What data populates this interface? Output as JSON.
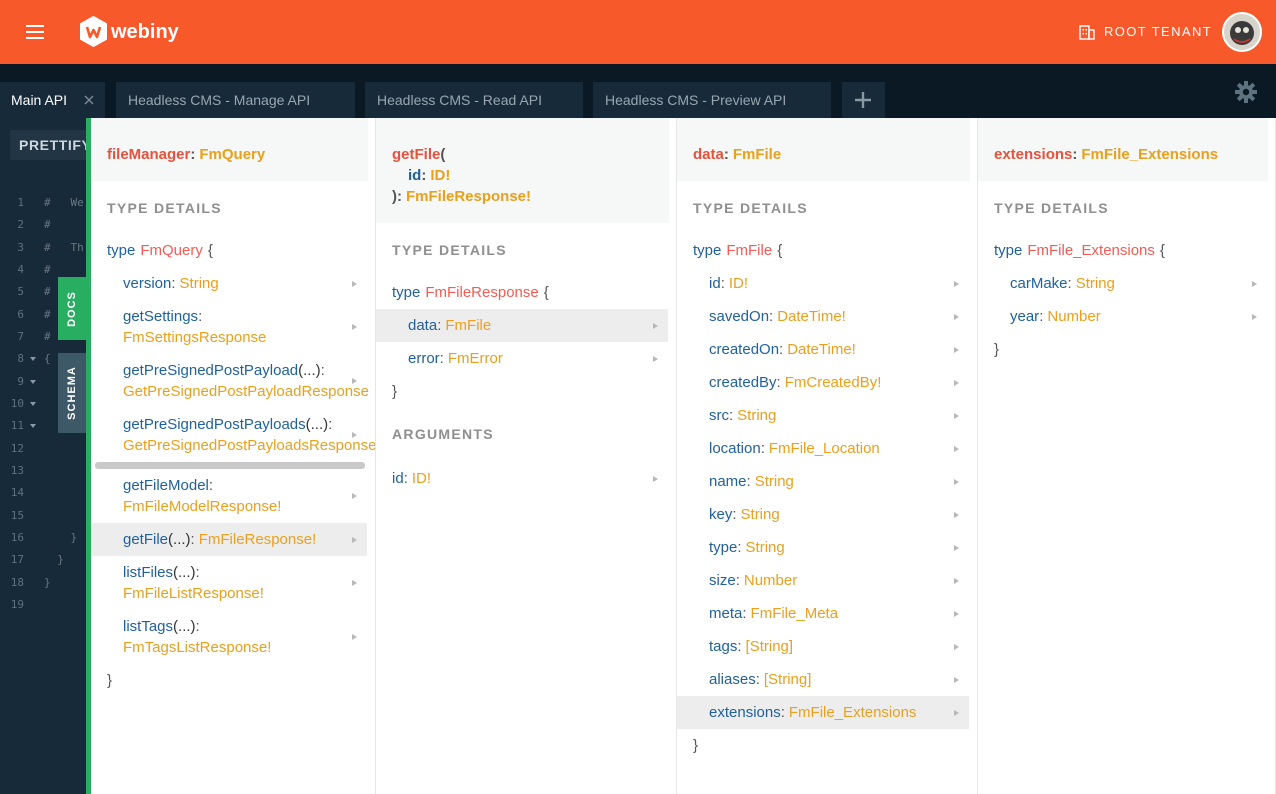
{
  "header": {
    "brand": "webiny",
    "tenant": "ROOT TENANT"
  },
  "tabs": [
    {
      "label": "Main API",
      "active": true
    },
    {
      "label": "Headless CMS - Manage API"
    },
    {
      "label": "Headless CMS - Read API"
    },
    {
      "label": "Headless CMS - Preview API"
    }
  ],
  "editor": {
    "prettify": "PRETTIFY",
    "lines": [
      {
        "number": "1",
        "code": "#   We"
      },
      {
        "number": "2",
        "code": "#"
      },
      {
        "number": "3",
        "code": "#   Th"
      },
      {
        "number": "4",
        "code": "#"
      },
      {
        "number": "5",
        "code": "#"
      },
      {
        "number": "6",
        "code": "#"
      },
      {
        "number": "7",
        "code": "#"
      },
      {
        "number": "8",
        "code": "{",
        "fold": true
      },
      {
        "number": "9",
        "fold": true
      },
      {
        "number": "10",
        "fold": true
      },
      {
        "number": "11",
        "fold": true
      },
      {
        "number": "12"
      },
      {
        "number": "13"
      },
      {
        "number": "14"
      },
      {
        "number": "15"
      },
      {
        "number": "16",
        "code": "    }"
      },
      {
        "number": "17",
        "code": "  }"
      },
      {
        "number": "18",
        "code": "}"
      },
      {
        "number": "19"
      }
    ]
  },
  "side_tabs": [
    "DOCS",
    "SCHEMA"
  ],
  "columns": [
    {
      "title": {
        "name": "fileManager",
        "type": "FmQuery"
      },
      "section": "TYPE DETAILS",
      "definition": {
        "keyword": "type",
        "name": "FmQuery",
        "open": "{",
        "close": "}"
      },
      "fields": [
        {
          "name": "version",
          "type": "String"
        },
        {
          "name": "getSettings",
          "type": "FmSettingsResponse"
        },
        {
          "name": "getPreSignedPostPayload",
          "args": "(...)",
          "type": "GetPreSignedPostPayloadResponse"
        },
        {
          "name": "getPreSignedPostPayloads",
          "args": "(...)",
          "type": "GetPreSignedPostPayloadsResponse"
        },
        {
          "name": "getFileModel",
          "type": "FmFileModelResponse!"
        },
        {
          "name": "getFile",
          "args": "(...)",
          "type": "FmFileResponse!",
          "selected": true
        },
        {
          "name": "listFiles",
          "args": "(...)",
          "type": "FmFileListResponse!"
        },
        {
          "name": "listTags",
          "args": "(...)",
          "type": "FmTagsListResponse!"
        }
      ]
    },
    {
      "title": {
        "name": "getFile",
        "open": "(",
        "args": [
          {
            "name": "id",
            "type": "ID!"
          }
        ],
        "close": ")",
        "type": "FmFileResponse!"
      },
      "section": "TYPE DETAILS",
      "definition": {
        "keyword": "type",
        "name": "FmFileResponse",
        "open": "{",
        "close": "}"
      },
      "fields": [
        {
          "name": "data",
          "type": "FmFile",
          "selected": true
        },
        {
          "name": "error",
          "type": "FmError"
        }
      ],
      "arguments_section": "ARGUMENTS",
      "arguments": [
        {
          "name": "id",
          "type": "ID!"
        }
      ]
    },
    {
      "title": {
        "name": "data",
        "type": "FmFile"
      },
      "section": "TYPE DETAILS",
      "definition": {
        "keyword": "type",
        "name": "FmFile",
        "open": "{",
        "close": "}"
      },
      "fields": [
        {
          "name": "id",
          "type": "ID!"
        },
        {
          "name": "savedOn",
          "type": "DateTime!"
        },
        {
          "name": "createdOn",
          "type": "DateTime!"
        },
        {
          "name": "createdBy",
          "type": "FmCreatedBy!"
        },
        {
          "name": "src",
          "type": "String"
        },
        {
          "name": "location",
          "type": "FmFile_Location"
        },
        {
          "name": "name",
          "type": "String"
        },
        {
          "name": "key",
          "type": "String"
        },
        {
          "name": "type",
          "type": "String"
        },
        {
          "name": "size",
          "type": "Number"
        },
        {
          "name": "meta",
          "type": "FmFile_Meta"
        },
        {
          "name": "tags",
          "type": "[String]"
        },
        {
          "name": "aliases",
          "type": "[String]"
        },
        {
          "name": "extensions",
          "type": "FmFile_Extensions",
          "selected": true
        }
      ]
    },
    {
      "title": {
        "name": "extensions",
        "type": "FmFile_Extensions"
      },
      "section": "TYPE DETAILS",
      "definition": {
        "keyword": "type",
        "name": "FmFile_Extensions",
        "open": "{",
        "close": "}"
      },
      "fields": [
        {
          "name": "carMake",
          "type": "String"
        },
        {
          "name": "year",
          "type": "Number"
        }
      ]
    }
  ]
}
